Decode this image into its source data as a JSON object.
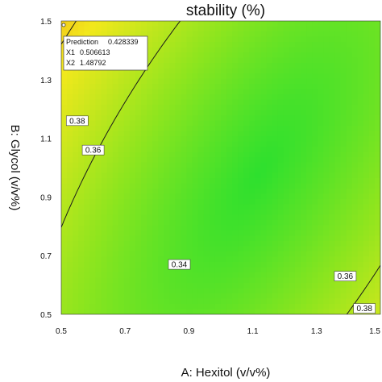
{
  "chart_data": {
    "type": "contour",
    "title": "stability (%)",
    "xlabel": "A: Hexitol (v/v%)",
    "ylabel": "B: Glycol (v/v%)",
    "xlim": [
      0.5,
      1.5
    ],
    "ylim": [
      0.5,
      1.5
    ],
    "x_ticks": [
      "0.5",
      "0.7",
      "0.9",
      "1.1",
      "1.3",
      "1.5"
    ],
    "y_ticks": [
      "0.5",
      "0.7",
      "0.9",
      "1.1",
      "1.3",
      "1.5"
    ],
    "colorscale": [
      "#2ee02e",
      "#8fe51e",
      "#f2e81c",
      "#f08a10",
      "#d81e0a"
    ],
    "contours": [
      {
        "level": 0.34,
        "label": "0.34",
        "label_at": [
          0.87,
          0.67
        ]
      },
      {
        "level": 0.36,
        "label": "0.36",
        "label_at": [
          0.6,
          1.06
        ],
        "label2_at": [
          1.39,
          0.63
        ]
      },
      {
        "level": 0.38,
        "label": "0.38",
        "label_at": [
          0.55,
          1.16
        ],
        "label2_at": [
          1.45,
          0.52
        ]
      }
    ],
    "prediction": {
      "prediction_label": "Prediction",
      "prediction_value": "0.428339",
      "x1_label": "X1",
      "x1_value": "0.506613",
      "x2_label": "X2",
      "x2_value": "1.48792"
    }
  }
}
